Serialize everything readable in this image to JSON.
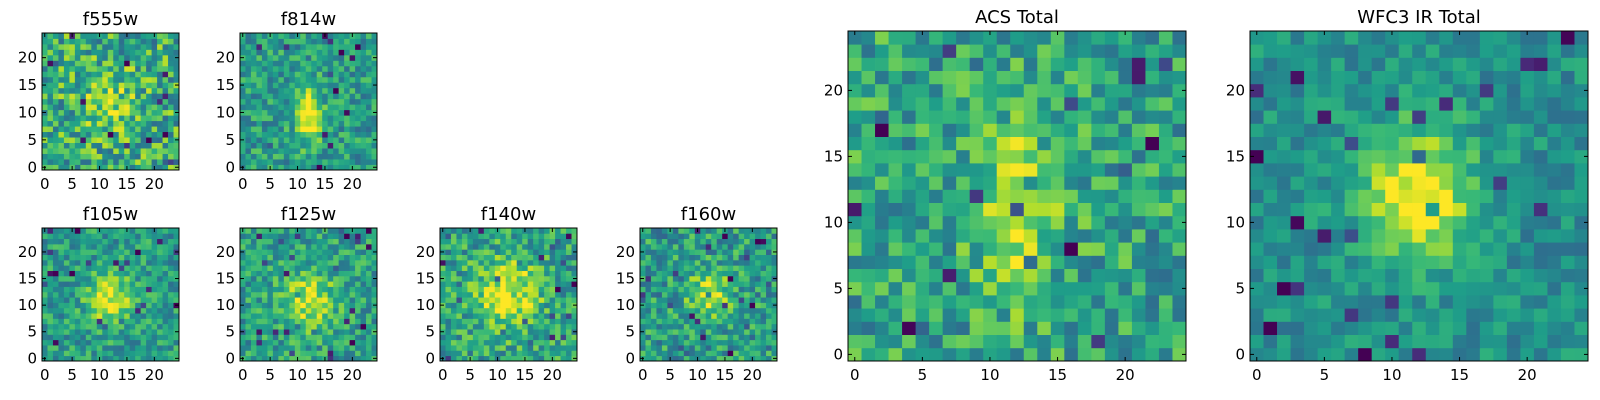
{
  "chart_data": [
    {
      "type": "heatmap",
      "title": "f555w",
      "colormap": "viridis",
      "grid": "25x25",
      "xticks": [
        "0",
        "5",
        "10",
        "15",
        "20"
      ],
      "yticks": [
        "0",
        "5",
        "10",
        "15",
        "20"
      ],
      "xlim": [
        0,
        25
      ],
      "ylim": [
        0,
        25
      ],
      "peak": [
        12,
        12
      ],
      "structure": "noise-dominated, faint source"
    },
    {
      "type": "heatmap",
      "title": "f814w",
      "colormap": "viridis",
      "grid": "25x25",
      "xticks": [
        "0",
        "5",
        "10",
        "15",
        "20"
      ],
      "yticks": [
        "0",
        "5",
        "10",
        "15",
        "20"
      ],
      "xlim": [
        0,
        25
      ],
      "ylim": [
        0,
        25
      ],
      "peak": [
        12,
        10
      ],
      "structure": "elongated vertical source"
    },
    {
      "type": "heatmap",
      "title": "f105w",
      "colormap": "viridis",
      "grid": "25x25",
      "xticks": [
        "0",
        "5",
        "10",
        "15",
        "20"
      ],
      "yticks": [
        "0",
        "5",
        "10",
        "15",
        "20"
      ],
      "xlim": [
        0,
        25
      ],
      "ylim": [
        0,
        25
      ],
      "peak": [
        12,
        11
      ],
      "structure": "compact source"
    },
    {
      "type": "heatmap",
      "title": "f125w",
      "colormap": "viridis",
      "grid": "25x25",
      "xticks": [
        "0",
        "5",
        "10",
        "15",
        "20"
      ],
      "yticks": [
        "0",
        "5",
        "10",
        "15",
        "20"
      ],
      "xlim": [
        0,
        25
      ],
      "ylim": [
        0,
        25
      ],
      "peak": [
        12,
        11
      ],
      "structure": "diffuse source"
    },
    {
      "type": "heatmap",
      "title": "f140w",
      "colormap": "viridis",
      "grid": "25x25",
      "xticks": [
        "0",
        "5",
        "10",
        "15",
        "20"
      ],
      "yticks": [
        "0",
        "5",
        "10",
        "15",
        "20"
      ],
      "xlim": [
        0,
        25
      ],
      "ylim": [
        0,
        25
      ],
      "peak": [
        12,
        12
      ],
      "structure": "bright extended source"
    },
    {
      "type": "heatmap",
      "title": "f160w",
      "colormap": "viridis",
      "grid": "25x25",
      "xticks": [
        "0",
        "5",
        "10",
        "15",
        "20"
      ],
      "yticks": [
        "0",
        "5",
        "10",
        "15",
        "20"
      ],
      "xlim": [
        0,
        25
      ],
      "ylim": [
        0,
        25
      ],
      "peak": [
        12,
        12
      ],
      "structure": "compact source"
    },
    {
      "type": "heatmap",
      "title": "ACS Total",
      "colormap": "viridis",
      "grid": "25x25",
      "xticks": [
        "0",
        "5",
        "10",
        "15",
        "20"
      ],
      "yticks": [
        "0",
        "5",
        "10",
        "15",
        "20"
      ],
      "xlim": [
        0,
        25
      ],
      "ylim": [
        0,
        25
      ],
      "peak": [
        12,
        11
      ],
      "structure": "elongated vertical source"
    },
    {
      "type": "heatmap",
      "title": "WFC3 IR Total",
      "colormap": "viridis",
      "grid": "25x25",
      "xticks": [
        "0",
        "5",
        "10",
        "15",
        "20"
      ],
      "yticks": [
        "0",
        "5",
        "10",
        "15",
        "20"
      ],
      "xlim": [
        0,
        25
      ],
      "ylim": [
        0,
        25
      ],
      "peak": [
        12,
        12
      ],
      "structure": "smooth compact source"
    }
  ]
}
